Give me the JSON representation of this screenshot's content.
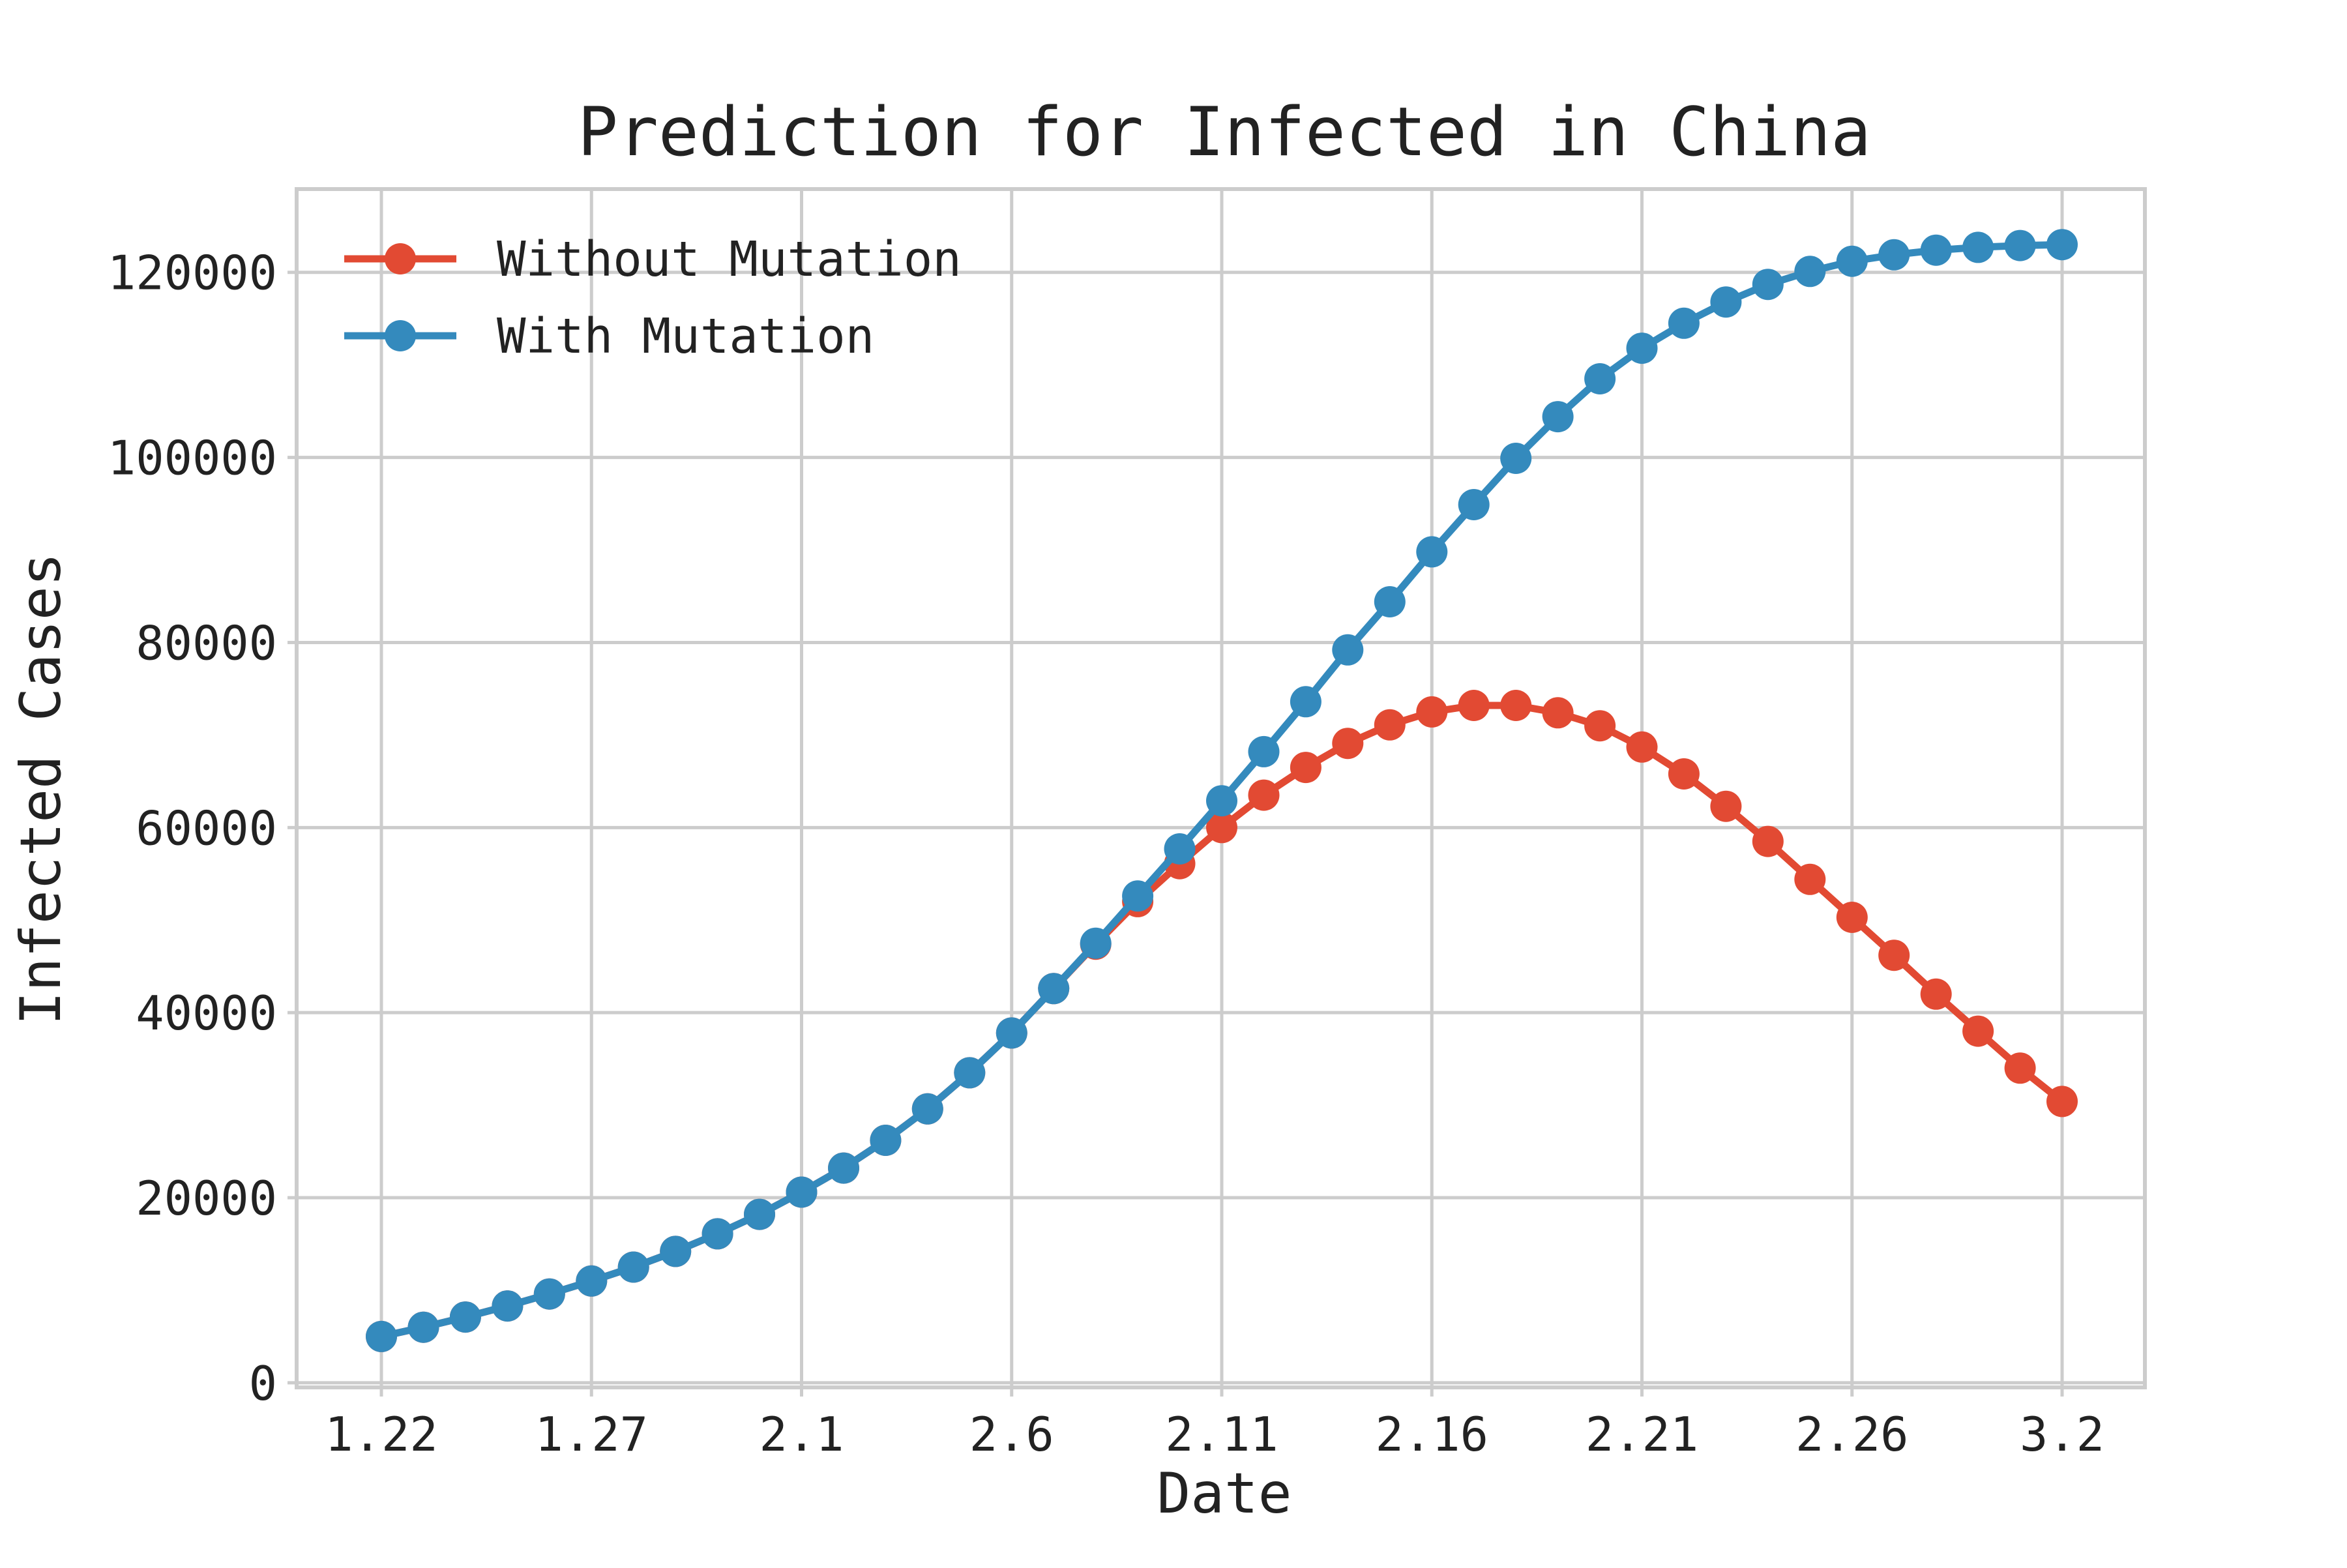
{
  "chart_data": {
    "type": "line",
    "title": "Prediction for Infected in China",
    "xlabel": "Date",
    "ylabel": "Infected Cases",
    "x_tick_labels": [
      "1.22",
      "1.27",
      "2.1",
      "2.6",
      "2.11",
      "2.16",
      "2.21",
      "2.26",
      "3.2"
    ],
    "x_tick_dates": [
      "1.22",
      "1.27",
      "2.1",
      "2.6",
      "2.11",
      "2.16",
      "2.21",
      "2.26",
      "3.2"
    ],
    "y_ticks": [
      0,
      20000,
      40000,
      60000,
      80000,
      100000,
      120000
    ],
    "y_tick_labels": [
      "0",
      "20000",
      "40000",
      "60000",
      "80000",
      "100000",
      "120000"
    ],
    "ylim": [
      -500,
      129000
    ],
    "grid": true,
    "legend_position": "top-left",
    "x": [
      "1.22",
      "1.23",
      "1.24",
      "1.25",
      "1.26",
      "1.27",
      "1.28",
      "1.29",
      "1.30",
      "1.31",
      "2.1",
      "2.2",
      "2.3",
      "2.4",
      "2.5",
      "2.6",
      "2.7",
      "2.8",
      "2.9",
      "2.10",
      "2.11",
      "2.12",
      "2.13",
      "2.14",
      "2.15",
      "2.16",
      "2.17",
      "2.18",
      "2.19",
      "2.20",
      "2.21",
      "2.22",
      "2.23",
      "2.24",
      "2.25",
      "2.26",
      "2.27",
      "2.28",
      "2.29",
      "3.1",
      "3.2"
    ],
    "series": [
      {
        "name": "Without Mutation",
        "color": "#e24a33",
        "values": [
          5000,
          6000,
          7100,
          8300,
          9600,
          11000,
          12500,
          14200,
          16100,
          18200,
          20600,
          23200,
          26200,
          29600,
          33500,
          37800,
          42600,
          47400,
          52000,
          56100,
          60000,
          63500,
          66500,
          69100,
          71100,
          72500,
          73200,
          73200,
          72400,
          71000,
          68700,
          65800,
          62300,
          58500,
          54400,
          50300,
          46200,
          42000,
          38000,
          34000,
          30400
        ]
      },
      {
        "name": "With Mutation",
        "color": "#348abd",
        "values": [
          5000,
          6000,
          7100,
          8300,
          9600,
          11000,
          12500,
          14200,
          16100,
          18200,
          20600,
          23200,
          26200,
          29600,
          33500,
          37800,
          42600,
          47500,
          52600,
          57700,
          62900,
          68200,
          73600,
          79200,
          84400,
          89800,
          94900,
          99900,
          104400,
          108500,
          111800,
          114500,
          116800,
          118700,
          120100,
          121200,
          121900,
          122400,
          122700,
          122900,
          123000
        ]
      }
    ]
  }
}
